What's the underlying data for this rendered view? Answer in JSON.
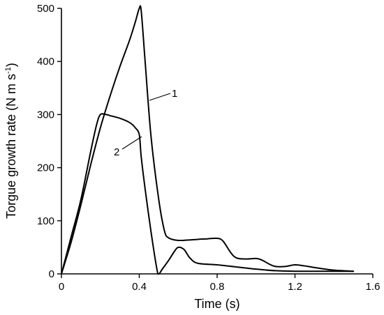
{
  "chart_data": {
    "type": "line",
    "title": "",
    "xlabel": "Time (s)",
    "ylabel": "Torgue growth rate (N m s",
    "ylabel_sup": "-1",
    "ylabel_close": ")",
    "xlim": [
      0,
      1.6
    ],
    "ylim": [
      0,
      500
    ],
    "x_ticks": [
      0,
      0.4,
      0.8,
      1.2,
      1.6
    ],
    "x_tick_labels": [
      "0",
      "0.4",
      "0.8",
      "1.2",
      "1.6"
    ],
    "y_ticks": [
      0,
      100,
      200,
      300,
      400,
      500
    ],
    "y_tick_labels": [
      "0",
      "100",
      "200",
      "300",
      "400",
      "500"
    ],
    "grid": false,
    "legend": "none",
    "series": [
      {
        "name": "1",
        "x": [
          0,
          0.05,
          0.1,
          0.15,
          0.2,
          0.25,
          0.3,
          0.35,
          0.38,
          0.4,
          0.41,
          0.43,
          0.46,
          0.5,
          0.53,
          0.55,
          0.58,
          0.62,
          0.7,
          0.75,
          0.8,
          0.83,
          0.87,
          0.9,
          0.95,
          1.0,
          1.03,
          1.07,
          1.1,
          1.15,
          1.2,
          1.25,
          1.3,
          1.4,
          1.5
        ],
        "y": [
          0,
          60,
          130,
          205,
          275,
          335,
          390,
          440,
          475,
          500,
          495,
          400,
          260,
          140,
          80,
          68,
          64,
          63,
          65,
          66,
          67,
          62,
          40,
          30,
          28,
          29,
          26,
          18,
          14,
          14,
          17,
          15,
          12,
          7,
          5
        ]
      },
      {
        "name": "2",
        "x": [
          0,
          0.05,
          0.1,
          0.15,
          0.18,
          0.2,
          0.23,
          0.25,
          0.3,
          0.35,
          0.38,
          0.4,
          0.41,
          0.43,
          0.46,
          0.49,
          0.5,
          0.52,
          0.55,
          0.58,
          0.6,
          0.63,
          0.66,
          0.7,
          0.8,
          0.9,
          1.0,
          1.1,
          1.2,
          1.3,
          1.4,
          1.5
        ],
        "y": [
          0,
          70,
          140,
          230,
          280,
          300,
          300,
          298,
          293,
          285,
          275,
          262,
          220,
          160,
          80,
          10,
          0,
          10,
          25,
          42,
          50,
          46,
          30,
          20,
          17,
          13,
          9,
          6,
          5,
          5,
          5,
          5
        ]
      }
    ]
  }
}
